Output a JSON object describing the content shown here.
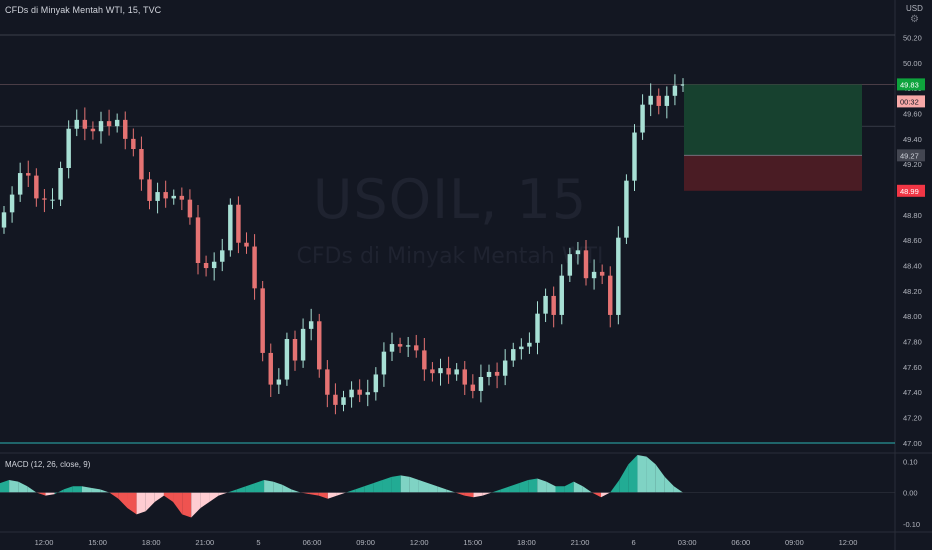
{
  "header": {
    "symbol_line": "CFDs di Minyak Mentah WTI, 15, TVC",
    "currency": "USD"
  },
  "watermark": {
    "line1": "USOIL, 15",
    "line2": "CFDs di Minyak Mentah WTI"
  },
  "colors": {
    "up": "#a8e0d5",
    "down": "#e57373",
    "target_zone": "#17412f",
    "stop_zone": "#4a1c24",
    "last_price_label": "#089981",
    "stop_label": "#f23645"
  },
  "chart_data": [
    {
      "type": "candlestick",
      "ylim": [
        46.92,
        50.22
      ],
      "y_ticks": [
        "50.20",
        "50.00",
        "49.80",
        "49.60",
        "49.40",
        "49.20",
        "49.00",
        "48.80",
        "48.60",
        "48.40",
        "48.20",
        "48.00",
        "47.80",
        "47.60",
        "47.40",
        "47.20",
        "47.00"
      ],
      "x_ticks": [
        "12:00",
        "15:00",
        "18:00",
        "21:00",
        "5",
        "06:00",
        "09:00",
        "12:00",
        "15:00",
        "18:00",
        "21:00",
        "6",
        "03:00",
        "06:00",
        "09:00",
        "12:00"
      ],
      "series": [
        {
          "name": "close",
          "values": [
            48.82,
            48.96,
            49.13,
            49.11,
            48.93,
            48.92,
            48.92,
            49.17,
            49.48,
            49.55,
            49.48,
            49.46,
            49.54,
            49.5,
            49.55,
            49.4,
            49.32,
            49.08,
            48.91,
            48.98,
            48.93,
            48.95,
            48.92,
            48.78,
            48.42,
            48.38,
            48.43,
            48.52,
            48.88,
            48.58,
            48.55,
            48.22,
            47.71,
            47.46,
            47.5,
            47.82,
            47.65,
            47.9,
            47.96,
            47.58,
            47.38,
            47.3,
            47.36,
            47.42,
            47.38,
            47.4,
            47.54,
            47.72,
            47.78,
            47.76,
            47.77,
            47.73,
            47.58,
            47.55,
            47.59,
            47.54,
            47.58,
            47.46,
            47.41,
            47.52,
            47.56,
            47.53,
            47.65,
            47.74,
            47.76,
            47.79,
            48.02,
            48.16,
            48.01,
            48.32,
            48.49,
            48.52,
            48.3,
            48.35,
            48.32,
            48.01,
            48.62,
            49.07,
            49.45,
            49.67,
            49.74,
            49.66,
            49.74,
            49.82,
            49.83
          ]
        },
        {
          "name": "open",
          "values": [
            48.7,
            48.82,
            48.96,
            49.13,
            49.11,
            48.93,
            48.92,
            48.92,
            49.17,
            49.48,
            49.55,
            49.48,
            49.46,
            49.54,
            49.5,
            49.55,
            49.4,
            49.32,
            49.08,
            48.91,
            48.98,
            48.93,
            48.95,
            48.92,
            48.78,
            48.42,
            48.38,
            48.43,
            48.52,
            48.88,
            48.58,
            48.55,
            48.22,
            47.71,
            47.46,
            47.5,
            47.82,
            47.65,
            47.9,
            47.96,
            47.58,
            47.38,
            47.3,
            47.36,
            47.42,
            47.38,
            47.4,
            47.54,
            47.72,
            47.78,
            47.76,
            47.77,
            47.73,
            47.58,
            47.55,
            47.59,
            47.54,
            47.58,
            47.46,
            47.41,
            47.52,
            47.56,
            47.53,
            47.65,
            47.74,
            47.76,
            47.79,
            48.02,
            48.16,
            48.01,
            48.32,
            48.49,
            48.52,
            48.3,
            48.35,
            48.32,
            48.01,
            48.62,
            49.07,
            49.45,
            49.67,
            49.74,
            49.66,
            49.74,
            49.82
          ]
        }
      ],
      "price_labels": {
        "last": "49.83",
        "countdown": "00:32",
        "entry": "49.27",
        "stop": "48.99"
      },
      "position": {
        "type": "long",
        "entry": 49.27,
        "target": 49.83,
        "stop": 48.99
      }
    },
    {
      "type": "area",
      "title": "MACD (12, 26, close, 9)",
      "ylim": [
        -0.12,
        0.12
      ],
      "y_ticks": [
        "0.10",
        "0.00",
        "-0.10"
      ],
      "series": [
        {
          "name": "MACD",
          "values": [
            0.03,
            0.04,
            0.035,
            0.02,
            0.0,
            -0.01,
            -0.005,
            0.01,
            0.02,
            0.02,
            0.015,
            0.01,
            0.0,
            -0.02,
            -0.05,
            -0.07,
            -0.06,
            -0.03,
            -0.01,
            -0.03,
            -0.07,
            -0.08,
            -0.05,
            -0.03,
            -0.01,
            0.0,
            0.01,
            0.02,
            0.03,
            0.04,
            0.035,
            0.025,
            0.01,
            0.0,
            -0.005,
            -0.01,
            -0.02,
            -0.01,
            0.0,
            0.01,
            0.02,
            0.03,
            0.04,
            0.05,
            0.055,
            0.05,
            0.04,
            0.03,
            0.02,
            0.01,
            0.0,
            -0.01,
            -0.015,
            -0.01,
            0.0,
            0.01,
            0.02,
            0.03,
            0.04,
            0.045,
            0.035,
            0.02,
            0.02,
            0.035,
            0.02,
            0.0,
            -0.015,
            0.0,
            0.04,
            0.09,
            0.12,
            0.115,
            0.09,
            0.05,
            0.02,
            0.0
          ]
        }
      ]
    }
  ]
}
